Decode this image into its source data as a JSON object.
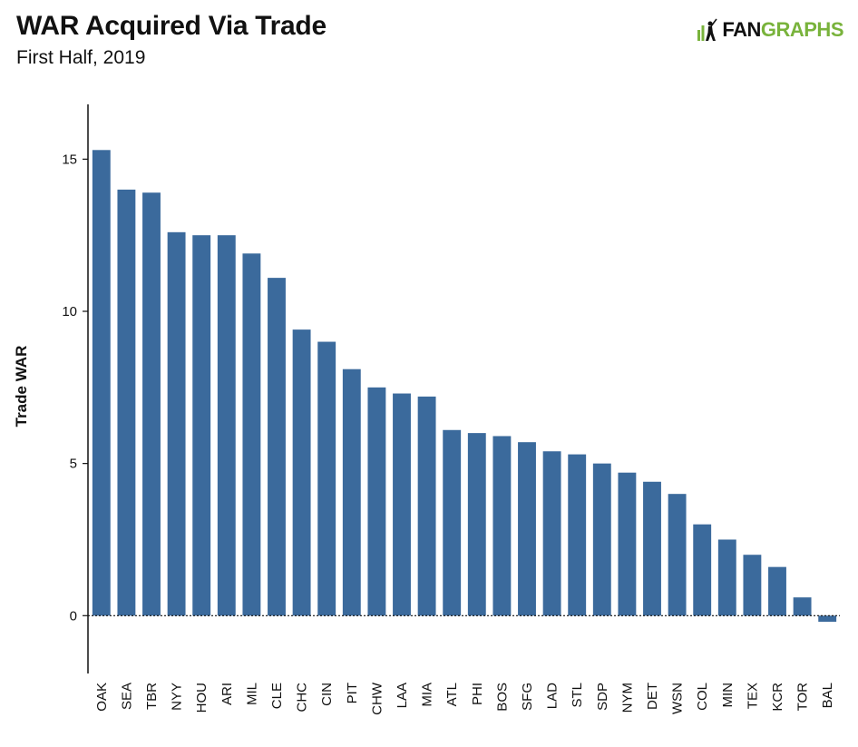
{
  "header": {
    "title": "WAR Acquired Via Trade",
    "subtitle": "First Half, 2019",
    "logo_left": "FAN",
    "logo_right": "GRAPHS"
  },
  "colors": {
    "bar": "#3b6a9c",
    "logo_green": "#79b33c"
  },
  "chart_data": {
    "type": "bar",
    "title": "WAR Acquired Via Trade",
    "subtitle": "First Half, 2019",
    "xlabel": "",
    "ylabel": "Trade WAR",
    "ylim": [
      -1.9,
      16.8
    ],
    "yticks": [
      0,
      5,
      10,
      15
    ],
    "grid": false,
    "zero_line": "dotted",
    "categories": [
      "OAK",
      "SEA",
      "TBR",
      "NYY",
      "HOU",
      "ARI",
      "MIL",
      "CLE",
      "CHC",
      "CIN",
      "PIT",
      "CHW",
      "LAA",
      "MIA",
      "ATL",
      "PHI",
      "BOS",
      "SFG",
      "LAD",
      "STL",
      "SDP",
      "NYM",
      "DET",
      "WSN",
      "COL",
      "MIN",
      "TEX",
      "KCR",
      "TOR",
      "BAL"
    ],
    "values": [
      15.3,
      14.0,
      13.9,
      12.6,
      12.5,
      12.5,
      11.9,
      11.1,
      9.4,
      9.0,
      8.1,
      7.5,
      7.3,
      7.2,
      6.1,
      6.0,
      5.9,
      5.7,
      5.4,
      5.3,
      5.0,
      4.7,
      4.4,
      4.0,
      3.0,
      2.5,
      2.0,
      1.6,
      0.6,
      -0.2
    ]
  }
}
